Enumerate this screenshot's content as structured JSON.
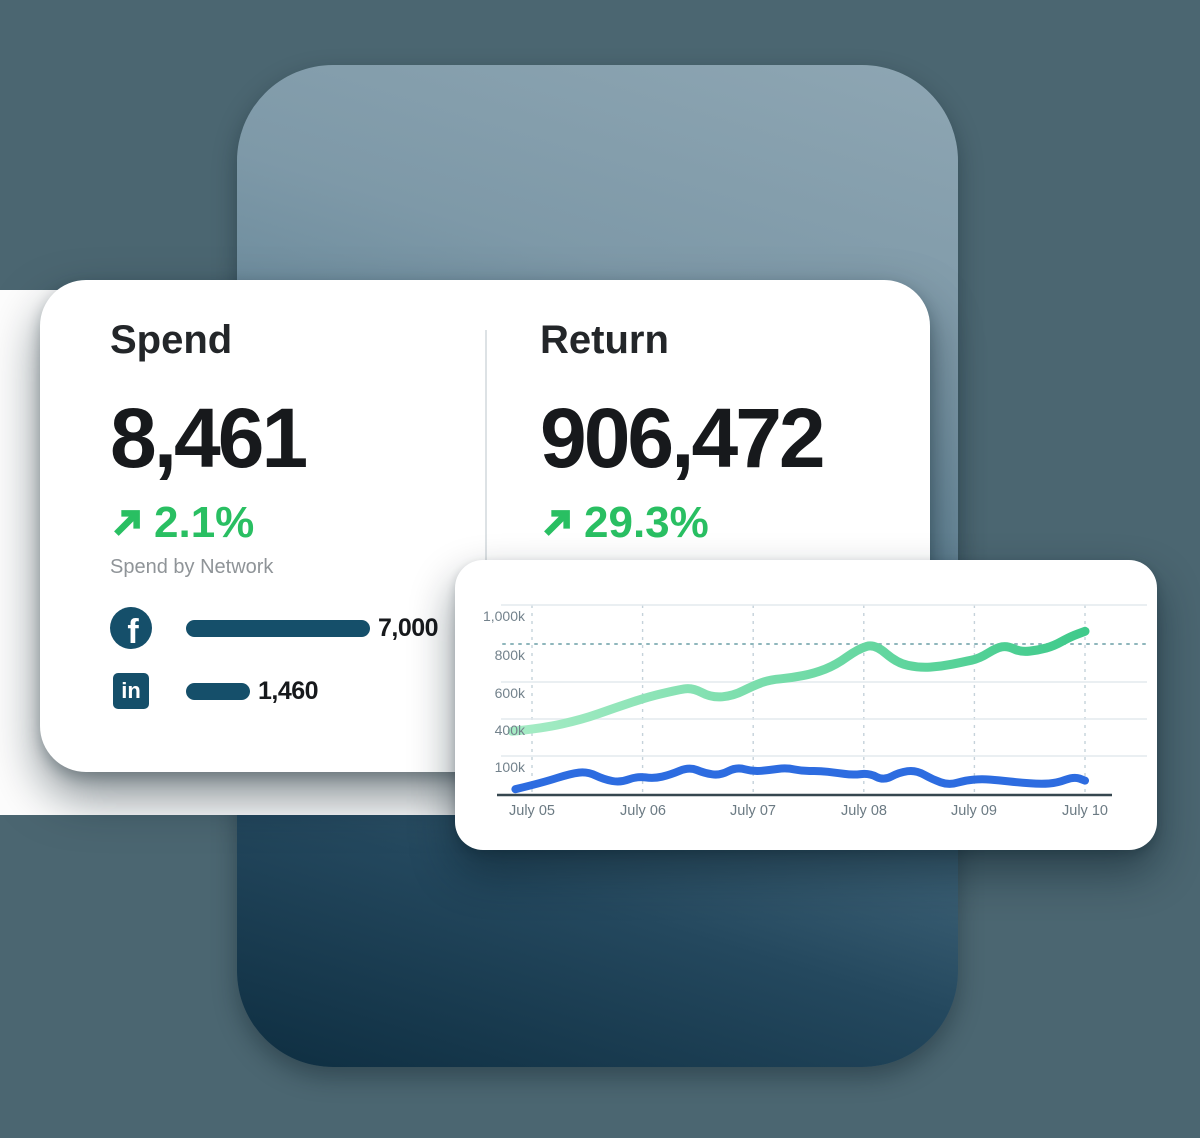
{
  "colors": {
    "page_background": "#4b6671",
    "panel_gradient_top": "#8ea6b3",
    "panel_gradient_bottom": "#0e2e41",
    "accent_green": "#29bf62",
    "brand_teal": "#154f6a",
    "chart_green_start": "#a6ecc5",
    "chart_green_end": "#3fca8b",
    "chart_blue": "#2d6ce0"
  },
  "stats": {
    "spend": {
      "title": "Spend",
      "value": "8,461",
      "change": "2.1%"
    },
    "return": {
      "title": "Return",
      "value": "906,472",
      "change": "29.3%"
    }
  },
  "network_breakdown": {
    "label": "Spend by Network",
    "items": [
      {
        "network": "facebook",
        "value": "7,000"
      },
      {
        "network": "linkedin",
        "value": "1,460"
      }
    ]
  },
  "chart_data": {
    "type": "line",
    "unit": "thousands",
    "x_labels": [
      "July 05",
      "July 06",
      "July 07",
      "July 08",
      "July 09",
      "July 10"
    ],
    "ytick_labels": [
      "1,000k",
      "800k",
      "600k",
      "400k",
      "100k"
    ],
    "ylim": [
      0,
      1000
    ],
    "grid": "horizontal solid + vertical dashed",
    "highlight_gridline": "800k dotted teal",
    "legend_position": "none",
    "series": [
      {
        "name": "Return",
        "color": "green-gradient",
        "points": [
          [
            -0.18,
            300
          ],
          [
            0.1,
            325
          ],
          [
            0.45,
            395
          ],
          [
            0.75,
            460
          ],
          [
            1.05,
            520
          ],
          [
            1.3,
            555
          ],
          [
            1.45,
            570
          ],
          [
            1.62,
            515
          ],
          [
            1.82,
            525
          ],
          [
            2.0,
            580
          ],
          [
            2.15,
            612
          ],
          [
            2.35,
            622
          ],
          [
            2.55,
            645
          ],
          [
            2.75,
            690
          ],
          [
            2.95,
            775
          ],
          [
            3.1,
            800
          ],
          [
            3.3,
            700
          ],
          [
            3.5,
            675
          ],
          [
            3.7,
            682
          ],
          [
            3.9,
            705
          ],
          [
            4.05,
            725
          ],
          [
            4.2,
            780
          ],
          [
            4.3,
            790
          ],
          [
            4.42,
            757
          ],
          [
            4.58,
            768
          ],
          [
            4.72,
            790
          ],
          [
            4.87,
            838
          ],
          [
            5.0,
            865
          ]
        ]
      },
      {
        "name": "Spend",
        "color": "blue",
        "points": [
          [
            -0.15,
            15
          ],
          [
            0.1,
            32
          ],
          [
            0.35,
            55
          ],
          [
            0.5,
            60
          ],
          [
            0.65,
            40
          ],
          [
            0.8,
            32
          ],
          [
            0.95,
            48
          ],
          [
            1.1,
            42
          ],
          [
            1.25,
            52
          ],
          [
            1.42,
            72
          ],
          [
            1.56,
            56
          ],
          [
            1.7,
            50
          ],
          [
            1.85,
            72
          ],
          [
            2.0,
            60
          ],
          [
            2.15,
            64
          ],
          [
            2.3,
            70
          ],
          [
            2.45,
            61
          ],
          [
            2.6,
            62
          ],
          [
            2.75,
            57
          ],
          [
            2.9,
            51
          ],
          [
            3.05,
            56
          ],
          [
            3.18,
            37
          ],
          [
            3.32,
            58
          ],
          [
            3.47,
            64
          ],
          [
            3.62,
            40
          ],
          [
            3.77,
            25
          ],
          [
            3.92,
            38
          ],
          [
            4.07,
            41
          ],
          [
            4.22,
            38
          ],
          [
            4.4,
            32
          ],
          [
            4.6,
            28
          ],
          [
            4.75,
            31
          ],
          [
            4.9,
            47
          ],
          [
            5.0,
            37
          ]
        ]
      }
    ]
  }
}
